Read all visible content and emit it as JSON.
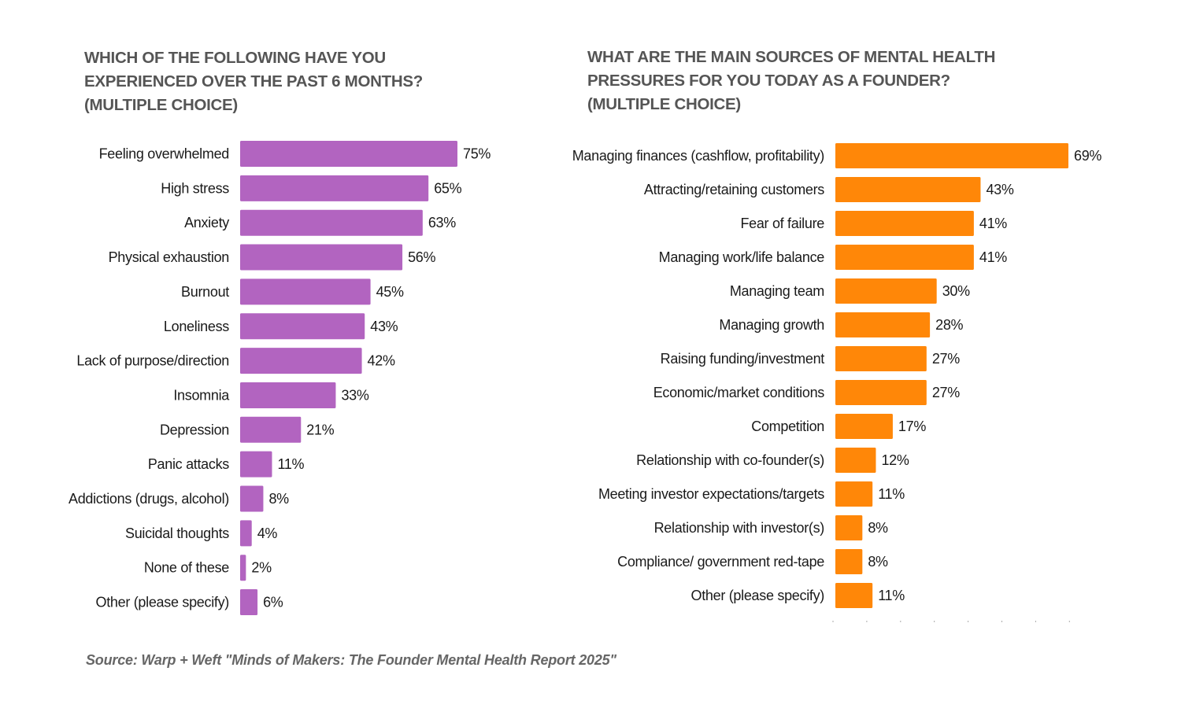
{
  "colors": {
    "left_bar": "#b264c0",
    "right_bar": "#ff8708",
    "title": "#555555",
    "text": "#1a1a1a",
    "tick": "#aaaaaa"
  },
  "source": "Source:  Warp + Weft \"Minds of Makers: The Founder Mental Health Report 2025\"",
  "chart_data": [
    {
      "type": "bar",
      "orientation": "horizontal",
      "title_lines": [
        "WHICH OF THE FOLLOWING HAVE YOU",
        "EXPERIENCED OVER THE PAST 6 MONTHS?",
        "(MULTIPLE CHOICE)"
      ],
      "xlabel": "",
      "ylabel": "",
      "xlim": [
        0,
        100
      ],
      "grid": false,
      "unit": "%",
      "categories": [
        "Feeling overwhelmed",
        "High stress",
        "Anxiety",
        "Physical exhaustion",
        "Burnout",
        "Loneliness",
        "Lack of purpose/direction",
        "Insomnia",
        "Depression",
        "Panic attacks",
        "Addictions (drugs, alcohol)",
        "Suicidal thoughts",
        "None of these",
        "Other (please specify)"
      ],
      "values": [
        75,
        65,
        63,
        56,
        45,
        43,
        42,
        33,
        21,
        11,
        8,
        4,
        2,
        6
      ],
      "value_labels": [
        "75%",
        "65%",
        "63%",
        "56%",
        "45%",
        "43%",
        "42%",
        "33%",
        "21%",
        "11%",
        "8%",
        "4%",
        "2%",
        "6%"
      ]
    },
    {
      "type": "bar",
      "orientation": "horizontal",
      "title_lines": [
        "WHAT ARE THE MAIN SOURCES OF MENTAL HEALTH",
        "PRESSURES FOR YOU TODAY AS A FOUNDER?",
        "(MULTIPLE CHOICE)"
      ],
      "xlabel": "",
      "ylabel": "",
      "xlim": [
        0,
        70
      ],
      "grid": false,
      "unit": "%",
      "categories": [
        "Managing finances (cashflow, profitability)",
        "Attracting/retaining customers",
        "Fear of failure",
        "Managing work/life balance",
        "Managing team",
        "Managing growth",
        "Raising funding/investment",
        "Economic/market conditions",
        "Competition",
        "Relationship with co-founder(s)",
        "Meeting investor expectations/targets",
        "Relationship with investor(s)",
        "Compliance/ government red-tape",
        "Other (please specify)"
      ],
      "values": [
        69,
        43,
        41,
        41,
        30,
        28,
        27,
        27,
        17,
        12,
        11,
        8,
        8,
        11
      ],
      "value_labels": [
        "69%",
        "43%",
        "41%",
        "41%",
        "30%",
        "28%",
        "27%",
        "27%",
        "17%",
        "12%",
        "11%",
        "8%",
        "8%",
        "11%"
      ],
      "x_ticks": [
        0,
        10,
        20,
        30,
        40,
        50,
        60,
        70
      ]
    }
  ]
}
